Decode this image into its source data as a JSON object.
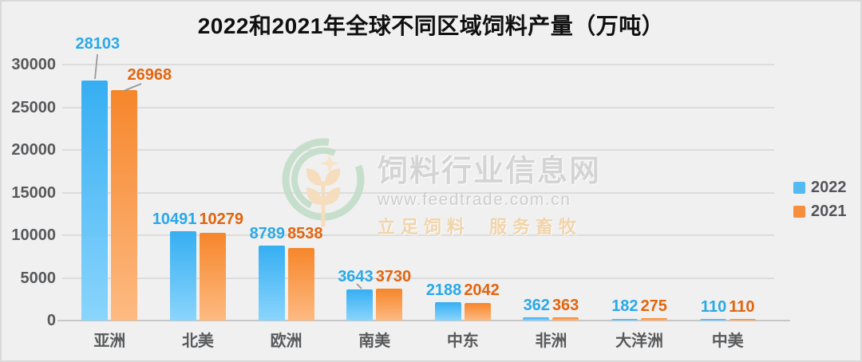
{
  "title": "2022和2021年全球不同区域饲料产量（万吨）",
  "chart_data": {
    "type": "bar",
    "title": "2022和2021年全球不同区域饲料产量（万吨）",
    "categories": [
      "亚洲",
      "北美",
      "欧洲",
      "南美",
      "中东",
      "非洲",
      "大洋洲",
      "中美"
    ],
    "series": [
      {
        "name": "2022",
        "values": [
          28103,
          10491,
          8789,
          3643,
          2188,
          362,
          182,
          110
        ],
        "bar_color_top": "#36AEF2",
        "bar_color_bottom": "#8AD5FC",
        "label_color": "#29A9E8",
        "legend_color": "#55BAF1"
      },
      {
        "name": "2021",
        "values": [
          26968,
          10279,
          8538,
          3730,
          2042,
          363,
          275,
          110
        ],
        "bar_color_top": "#F6862B",
        "bar_color_bottom": "#FDBA82",
        "label_color": "#E2650E",
        "legend_color": "#F78E3D"
      }
    ],
    "xlabel": "",
    "ylabel": "",
    "ylim": [
      0,
      30000
    ],
    "yticks": [
      0,
      5000,
      10000,
      15000,
      20000,
      25000,
      30000
    ],
    "grid": true,
    "legend_position": "right"
  },
  "watermark": {
    "site_name": "饲料行业信息网",
    "url": "www.feedtrade.com.cn",
    "slogan_left": "立足饲料",
    "slogan_right": "服务畜牧",
    "logo": "feedtrade-wheat-circle-logo"
  },
  "colors": {
    "background": "#F0F0F0",
    "border": "#D9D9D9",
    "gridline": "#DCDCDC",
    "axis_line": "#C6C6C6",
    "axis_text": "#58595B",
    "title_text": "#101010",
    "leader_line": "#999999",
    "watermark_green": "#C3DDCA",
    "watermark_wheat": "#F7DCBA"
  }
}
